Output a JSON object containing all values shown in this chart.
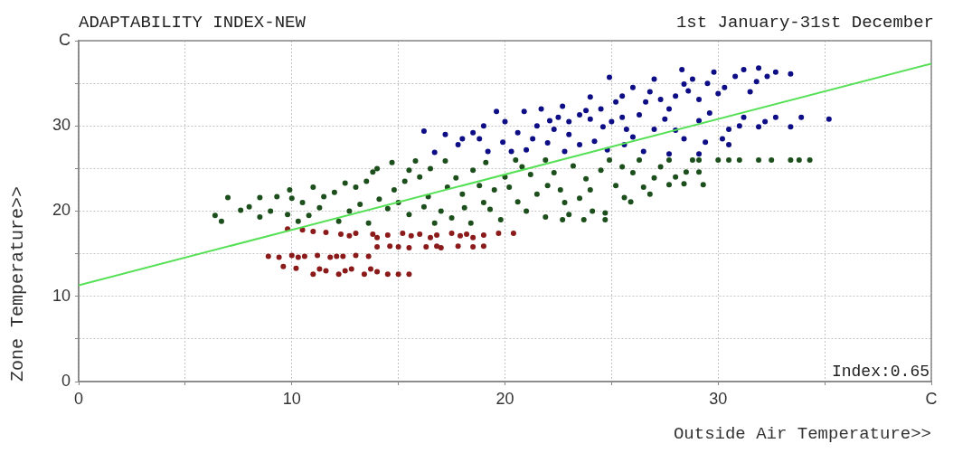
{
  "chart_data": {
    "type": "scatter",
    "title": "ADAPTABILITY INDEX-NEW",
    "subtitle": "1st January-31st December",
    "xlabel": "Outside Air Temperature>>",
    "ylabel": "Zone Temperature>>",
    "annotations": [
      "Index:0.65"
    ],
    "xlim": [
      0,
      40
    ],
    "ylim": [
      0,
      40
    ],
    "xticks": [
      0,
      {
        "value": 5,
        "label": null
      },
      10,
      {
        "value": 15,
        "label": null
      },
      20,
      {
        "value": 25,
        "label": null
      },
      30,
      {
        "value": 35,
        "label": null
      },
      {
        "value": 40,
        "label": "C"
      }
    ],
    "yticks": [
      0,
      {
        "value": 5,
        "label": null
      },
      10,
      {
        "value": 15,
        "label": null
      },
      20,
      {
        "value": 25,
        "label": null
      },
      30,
      {
        "value": 35,
        "label": null
      },
      {
        "value": 40,
        "label": "C"
      }
    ],
    "grid": true,
    "legend": false,
    "marker": "circle",
    "series": [
      {
        "color": "#0d0d85",
        "x": [
          16.2,
          17.2,
          16.7,
          17.8,
          18.5,
          19.2,
          19.6,
          19.9,
          20.6,
          20.9,
          21.3,
          22.1,
          22.3,
          22.7,
          23.5,
          23.5,
          24.0,
          24.6,
          24.9,
          25.2,
          25.6,
          25.7,
          26.0,
          26.3,
          26.6,
          27.0,
          27.0,
          27.3,
          27.7,
          27.7,
          28.3,
          28.4,
          28.4,
          28.6,
          29.1,
          29.1,
          29.1,
          29.4,
          29.8,
          30.3,
          30.5,
          30.5,
          31.2,
          31.2,
          31.8,
          31.9,
          31.9,
          32.7,
          32.7,
          33.4,
          33.4,
          33.9,
          35.2,
          18.0,
          21.0,
          22.0,
          24.2,
          26.5,
          25.5,
          23.0,
          19.0,
          20.0,
          21.5,
          22.5,
          23.0,
          24.0,
          24.5,
          25.0,
          25.5,
          26.0,
          26.8,
          27.5,
          28.0,
          28.0,
          28.8,
          29.5,
          29.6,
          30.0,
          30.8,
          31.0,
          31.5,
          32.2,
          32.3,
          20.3,
          22.8,
          24.8,
          23.8,
          21.7,
          18.8,
          30.2
        ],
        "values": [
          29.4,
          29.0,
          26.9,
          27.8,
          29.2,
          27.0,
          31.7,
          28.1,
          29.2,
          31.7,
          28.5,
          30.6,
          29.6,
          32.3,
          27.8,
          31.3,
          33.4,
          29.9,
          35.7,
          32.8,
          27.8,
          29.6,
          34.5,
          31.3,
          32.8,
          35.5,
          29.6,
          33.1,
          32.0,
          26.7,
          36.6,
          34.9,
          28.5,
          34.1,
          33.1,
          30.6,
          26.7,
          28.1,
          36.3,
          34.5,
          29.6,
          27.8,
          36.6,
          31.0,
          35.2,
          36.8,
          29.9,
          36.3,
          31.0,
          36.1,
          29.9,
          31.0,
          30.8,
          28.5,
          27.2,
          28.0,
          28.2,
          27.0,
          31.0,
          30.5,
          30.0,
          30.5,
          30.0,
          31.0,
          29.0,
          30.8,
          32.0,
          30.5,
          33.5,
          28.7,
          34.0,
          30.8,
          33.5,
          29.5,
          35.5,
          35.0,
          31.5,
          33.8,
          35.8,
          30.0,
          34.0,
          30.5,
          35.8,
          27.0,
          27.0,
          27.2,
          31.8,
          32.0,
          28.5,
          28.5
        ]
      },
      {
        "color": "#1c4f1c",
        "x": [
          6.4,
          6.7,
          7.0,
          7.6,
          8.5,
          8.5,
          9.3,
          9.8,
          9.9,
          10.3,
          11.0,
          11.3,
          12.0,
          12.7,
          13.0,
          13.6,
          13.8,
          14.1,
          14.7,
          15.3,
          15.5,
          15.8,
          16.4,
          16.7,
          17.2,
          17.7,
          18.1,
          18.4,
          19.1,
          19.5,
          19.8,
          20.5,
          20.6,
          21.2,
          21.9,
          21.9,
          22.6,
          22.7,
          23.2,
          23.0,
          23.7,
          24.1,
          24.7,
          24.7,
          24.9,
          25.6,
          25.9,
          26.3,
          27.0,
          27.7,
          27.7,
          28.4,
          28.5,
          29.1,
          29.1,
          29.3,
          30.5,
          31.9,
          33.4,
          33.8,
          34.3,
          12.5,
          10.5,
          14.5,
          16.0,
          18.0,
          20.0,
          22.0,
          24.0,
          26.0,
          23.5,
          17.0,
          19.0,
          21.0,
          26.8,
          8.0,
          9.0,
          10.0,
          10.8,
          11.5,
          12.2,
          13.2,
          13.5,
          14.0,
          14.8,
          15.0,
          15.5,
          16.2,
          16.5,
          17.3,
          17.5,
          18.5,
          18.8,
          19.3,
          20.2,
          20.8,
          21.5,
          22.3,
          22.8,
          23.8,
          24.5,
          25.2,
          25.5,
          26.5,
          27.3,
          28.0,
          28.8,
          30.0,
          31.0,
          32.5
        ],
        "values": [
          19.5,
          18.8,
          21.6,
          20.1,
          21.6,
          19.3,
          21.7,
          19.6,
          22.5,
          18.8,
          22.8,
          20.4,
          22.2,
          20.0,
          22.8,
          18.6,
          24.6,
          21.4,
          25.7,
          23.5,
          19.6,
          25.9,
          21.7,
          18.6,
          25.9,
          23.9,
          20.4,
          18.6,
          25.7,
          22.5,
          19.0,
          26.0,
          21.1,
          24.3,
          19.3,
          26.0,
          22.5,
          19.0,
          25.3,
          19.6,
          19.0,
          20.0,
          19.8,
          19.0,
          26.0,
          21.6,
          21.1,
          26.0,
          23.9,
          26.0,
          23.1,
          23.2,
          24.6,
          26.0,
          24.6,
          23.1,
          26.0,
          26.0,
          26.0,
          26.0,
          26.0,
          23.3,
          21.0,
          20.3,
          24.0,
          22.0,
          24.0,
          23.0,
          22.5,
          24.5,
          21.5,
          20.0,
          21.0,
          20.0,
          22.0,
          20.5,
          20.0,
          21.5,
          19.5,
          21.7,
          18.8,
          20.8,
          23.5,
          25.0,
          22.5,
          21.0,
          24.8,
          20.5,
          25.0,
          22.8,
          19.2,
          24.8,
          23.0,
          20.2,
          22.8,
          25.2,
          22.0,
          24.5,
          21.0,
          23.8,
          24.8,
          23.0,
          25.2,
          22.8,
          25.2,
          24.0,
          26.0,
          26.0,
          26.0,
          26.0
        ]
      },
      {
        "color": "#8b1a1a",
        "x": [
          9.8,
          10.5,
          11.6,
          12.3,
          13.0,
          13.8,
          14.5,
          15.2,
          16.0,
          16.8,
          17.5,
          18.2,
          19.0,
          19.7,
          20.4,
          14.0,
          16.5,
          18.5,
          14.0,
          14.6,
          15.5,
          16.3,
          17.0,
          17.8,
          18.5,
          19.0,
          8.9,
          9.4,
          10.0,
          10.6,
          11.2,
          11.8,
          12.4,
          13.0,
          13.6,
          9.6,
          10.2,
          11.0,
          11.6,
          12.2,
          12.8,
          13.4,
          14.0,
          14.5,
          15.0,
          15.5,
          11.0,
          12.7,
          15.6,
          17.9,
          15.0,
          16.8,
          10.3,
          12.1,
          11.3,
          12.5,
          13.7
        ],
        "values": [
          17.9,
          17.8,
          17.5,
          17.3,
          17.4,
          17.3,
          17.2,
          17.4,
          17.3,
          17.2,
          17.4,
          17.3,
          17.2,
          17.4,
          17.4,
          16.9,
          16.9,
          16.9,
          15.8,
          15.9,
          15.7,
          15.8,
          15.7,
          15.9,
          15.8,
          15.9,
          14.7,
          14.6,
          14.8,
          14.7,
          14.8,
          14.6,
          14.7,
          14.8,
          14.7,
          13.5,
          13.3,
          12.6,
          13.0,
          12.6,
          13.2,
          12.6,
          12.9,
          12.6,
          12.6,
          12.6,
          17.6,
          17.1,
          17.1,
          17.1,
          15.8,
          15.9,
          14.6,
          14.7,
          13.2,
          13.0,
          13.2
        ]
      },
      {
        "type": "line",
        "color": "#55e055",
        "x": [
          0,
          40
        ],
        "values": [
          11.3,
          37.3
        ],
        "marker": "none"
      }
    ]
  }
}
